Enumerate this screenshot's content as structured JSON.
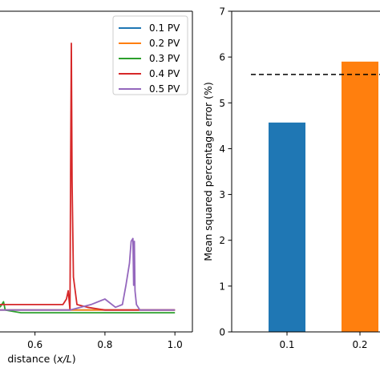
{
  "chart_data": [
    {
      "type": "line",
      "title": "",
      "xlabel_prefix": "distance (",
      "xlabel_var": "x/L",
      "xlabel_suffix": ")",
      "xlim": [
        0.5,
        1.05
      ],
      "xticks": [
        {
          "value": 0.6,
          "label": "0.6"
        },
        {
          "value": 0.8,
          "label": "0.8"
        },
        {
          "value": 1.0,
          "label": "1.0"
        }
      ],
      "legend_position": "top-right",
      "series": [
        {
          "name": "0.1 PV",
          "color": "#1f77b4",
          "points": [
            [
              0.5,
              0.03
            ],
            [
              1.0,
              0.03
            ]
          ]
        },
        {
          "name": "0.2 PV",
          "color": "#ff7f0e",
          "points": [
            [
              0.5,
              0.03
            ],
            [
              0.68,
              0.03
            ],
            [
              0.71,
              0.03
            ],
            [
              1.0,
              0.03
            ]
          ]
        },
        {
          "name": "0.3 PV",
          "color": "#2ca02c",
          "points": [
            [
              0.5,
              0.04
            ],
            [
              0.51,
              0.06
            ],
            [
              0.515,
              0.03
            ],
            [
              0.56,
              0.02
            ],
            [
              1.0,
              0.02
            ]
          ]
        },
        {
          "name": "0.4 PV",
          "color": "#d62728",
          "points": [
            [
              0.5,
              0.05
            ],
            [
              0.68,
              0.05
            ],
            [
              0.69,
              0.07
            ],
            [
              0.695,
              0.1
            ],
            [
              0.7,
              0.03
            ],
            [
              0.702,
              0.55
            ],
            [
              0.704,
              1.0
            ],
            [
              0.706,
              0.5
            ],
            [
              0.71,
              0.15
            ],
            [
              0.72,
              0.05
            ],
            [
              0.75,
              0.04
            ],
            [
              0.8,
              0.03
            ],
            [
              0.9,
              0.03
            ],
            [
              1.0,
              0.03
            ]
          ]
        },
        {
          "name": "0.5 PV",
          "color": "#9467bd",
          "points": [
            [
              0.5,
              0.03
            ],
            [
              0.7,
              0.03
            ],
            [
              0.76,
              0.05
            ],
            [
              0.8,
              0.07
            ],
            [
              0.83,
              0.04
            ],
            [
              0.85,
              0.05
            ],
            [
              0.86,
              0.12
            ],
            [
              0.87,
              0.2
            ],
            [
              0.875,
              0.28
            ],
            [
              0.88,
              0.29
            ],
            [
              0.882,
              0.12
            ],
            [
              0.884,
              0.28
            ],
            [
              0.886,
              0.1
            ],
            [
              0.89,
              0.05
            ],
            [
              0.9,
              0.03
            ],
            [
              1.0,
              0.03
            ]
          ]
        }
      ]
    },
    {
      "type": "bar",
      "title": "",
      "ylabel": "Mean squared percentage error (%)",
      "ylim": [
        0,
        7
      ],
      "yticks": [
        {
          "value": 0,
          "label": "0"
        },
        {
          "value": 1,
          "label": "1"
        },
        {
          "value": 2,
          "label": "2"
        },
        {
          "value": 3,
          "label": "3"
        },
        {
          "value": 4,
          "label": "4"
        },
        {
          "value": 5,
          "label": "5"
        },
        {
          "value": 6,
          "label": "6"
        },
        {
          "value": 7,
          "label": "7"
        }
      ],
      "categories": [
        "0.1",
        "0.2"
      ],
      "values": [
        4.57,
        5.9
      ],
      "colors": [
        "#1f77b4",
        "#ff7f0e"
      ],
      "reference_line": 5.62
    }
  ]
}
